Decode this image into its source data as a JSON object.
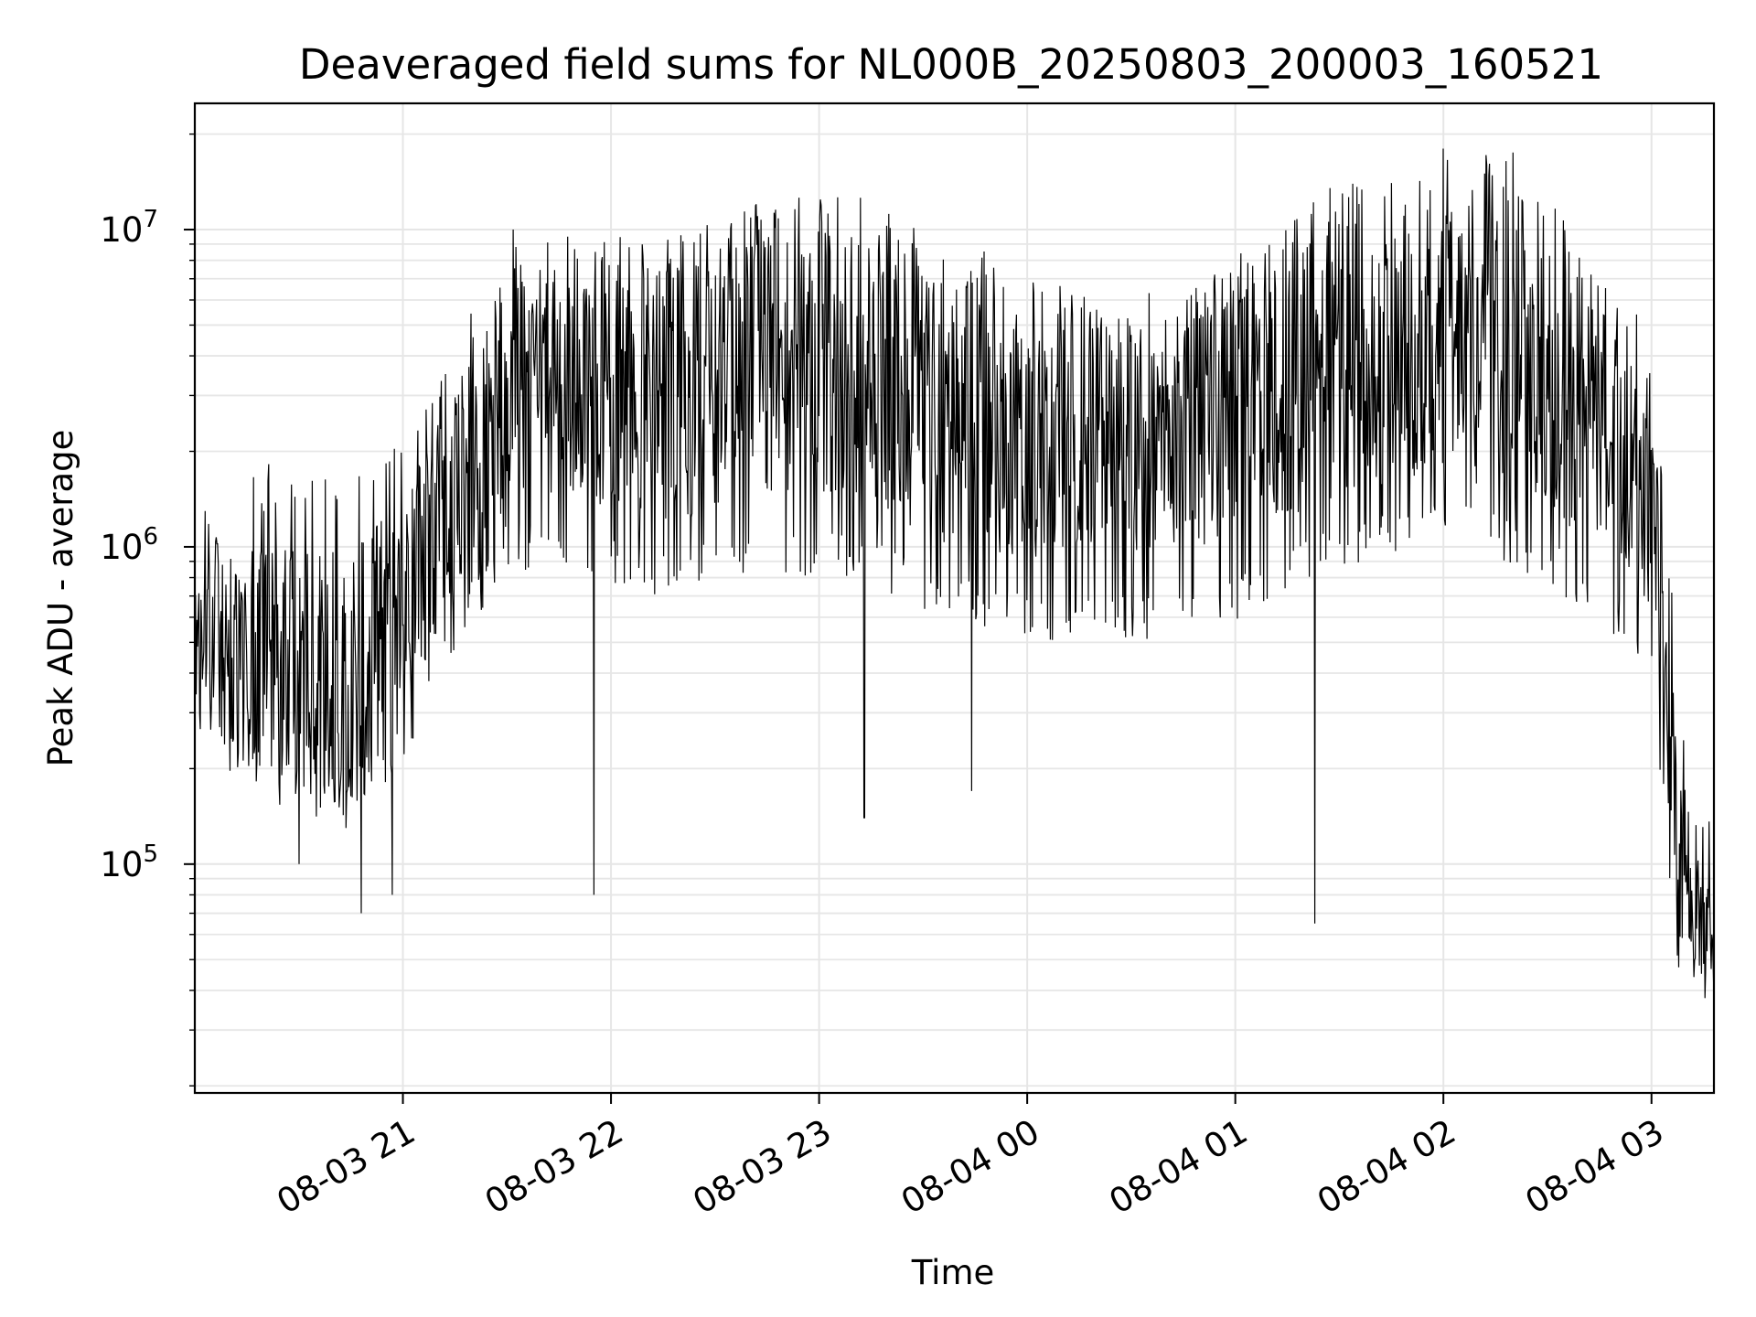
{
  "chart_data": {
    "type": "line",
    "title": "Deaveraged field sums for NL000B_20250803_200003_160521",
    "xlabel": "Time",
    "ylabel": "Peak ADU - average",
    "xlim": [
      "2025-08-03T20:00",
      "2025-08-04T03:18"
    ],
    "ylim": [
      19000,
      25000000
    ],
    "y_scale": "log",
    "grid": true,
    "legend": "none",
    "line_color": "#000000",
    "x_ticks": [
      {
        "time": "2025-08-03T21:00",
        "label": "08-03 21"
      },
      {
        "time": "2025-08-03T22:00",
        "label": "08-03 22"
      },
      {
        "time": "2025-08-03T23:00",
        "label": "08-03 23"
      },
      {
        "time": "2025-08-04T00:00",
        "label": "08-04 00"
      },
      {
        "time": "2025-08-04T01:00",
        "label": "08-04 01"
      },
      {
        "time": "2025-08-04T02:00",
        "label": "08-04 02"
      },
      {
        "time": "2025-08-04T03:00",
        "label": "08-04 03"
      }
    ],
    "y_ticks": [
      {
        "value": 100000,
        "base": "10",
        "exp": "5"
      },
      {
        "value": 1000000,
        "base": "10",
        "exp": "6"
      },
      {
        "value": 10000000,
        "base": "10",
        "exp": "7"
      }
    ],
    "series": [
      {
        "x": [
          "2025-08-03T20:00",
          "2025-08-03T20:15",
          "2025-08-03T20:30",
          "2025-08-03T20:45",
          "2025-08-03T21:00",
          "2025-08-03T21:15",
          "2025-08-03T21:30",
          "2025-08-03T21:45",
          "2025-08-03T22:00",
          "2025-08-03T22:15",
          "2025-08-03T22:30",
          "2025-08-03T22:45",
          "2025-08-03T23:00",
          "2025-08-03T23:15",
          "2025-08-03T23:30",
          "2025-08-03T23:45",
          "2025-08-04T00:00",
          "2025-08-04T00:15",
          "2025-08-04T00:30",
          "2025-08-04T00:45",
          "2025-08-04T01:00",
          "2025-08-04T01:15",
          "2025-08-04T01:30",
          "2025-08-04T01:45",
          "2025-08-04T02:00",
          "2025-08-04T02:15",
          "2025-08-04T02:30",
          "2025-08-04T02:45",
          "2025-08-04T03:00",
          "2025-08-04T03:05",
          "2025-08-04T03:10",
          "2025-08-04T03:18"
        ],
        "upper": [
          1300000,
          1500000,
          1600000,
          1600000,
          1900000,
          3500000,
          8500000,
          9000000,
          9000000,
          8000000,
          9000000,
          10500000,
          11000000,
          10500000,
          9000000,
          7500000,
          6000000,
          5500000,
          5500000,
          5500000,
          7000000,
          9000000,
          12000000,
          13000000,
          15000000,
          15000000,
          11000000,
          6500000,
          4000000,
          900000,
          170000,
          120000
        ],
        "median": [
          650000,
          450000,
          400000,
          380000,
          650000,
          1500000,
          3200000,
          3500000,
          3300000,
          3000000,
          3200000,
          3800000,
          3500000,
          3300000,
          2900000,
          2500000,
          2300000,
          2200000,
          2300000,
          2300000,
          2700000,
          3200000,
          3800000,
          4200000,
          4500000,
          4300000,
          3500000,
          2300000,
          1500000,
          180000,
          80000,
          55000
        ],
        "lower": [
          300000,
          200000,
          170000,
          150000,
          250000,
          550000,
          1000000,
          1000000,
          900000,
          800000,
          900000,
          1000000,
          950000,
          900000,
          750000,
          650000,
          600000,
          580000,
          600000,
          600000,
          700000,
          850000,
          1000000,
          1100000,
          1200000,
          1100000,
          900000,
          650000,
          500000,
          70000,
          45000,
          40000
        ],
        "spikes": [
          {
            "x": "2025-08-03T20:30",
            "y": 100000
          },
          {
            "x": "2025-08-03T20:48",
            "y": 70000
          },
          {
            "x": "2025-08-03T20:57",
            "y": 80000
          },
          {
            "x": "2025-08-03T21:55",
            "y": 80000
          },
          {
            "x": "2025-08-03T23:13",
            "y": 140000
          },
          {
            "x": "2025-08-03T23:44",
            "y": 170000
          },
          {
            "x": "2025-08-04T01:23",
            "y": 65000
          },
          {
            "x": "2025-08-04T02:00",
            "y": 18000000
          },
          {
            "x": "2025-08-04T02:20",
            "y": 17500000
          }
        ]
      }
    ]
  }
}
